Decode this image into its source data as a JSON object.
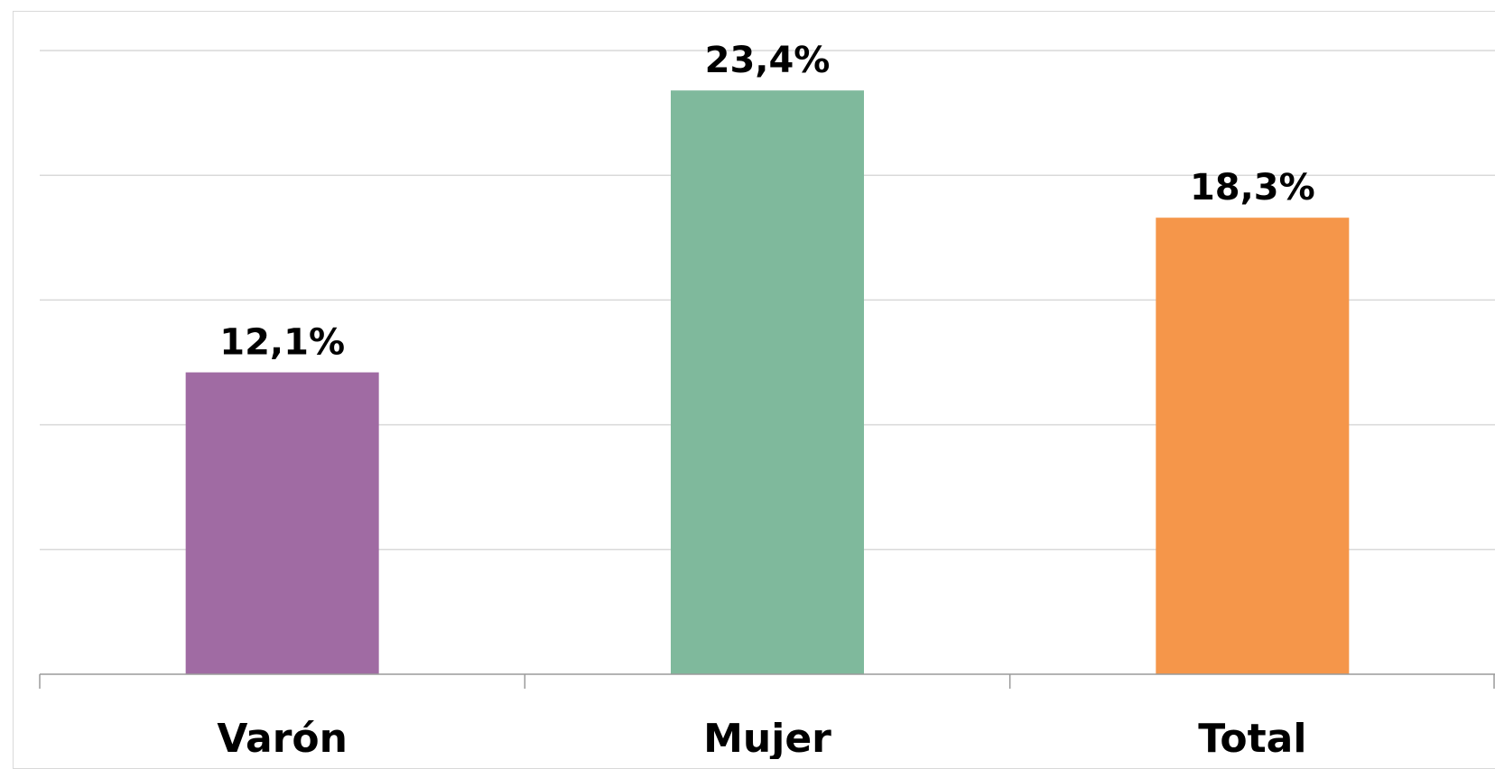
{
  "chart_data": {
    "type": "bar",
    "title": "",
    "xlabel": "",
    "ylabel": "",
    "categories": [
      "Varón",
      "Mujer",
      "Total"
    ],
    "values": [
      12.1,
      23.4,
      18.3
    ],
    "data_labels": [
      "12,1%",
      "23,4%",
      "18,3%"
    ],
    "colors": [
      "#a06ba3",
      "#7fb99c",
      "#f5964a"
    ],
    "ylim": [
      0,
      25
    ],
    "y_tick_step": 5,
    "grid": true,
    "legend": "none"
  }
}
